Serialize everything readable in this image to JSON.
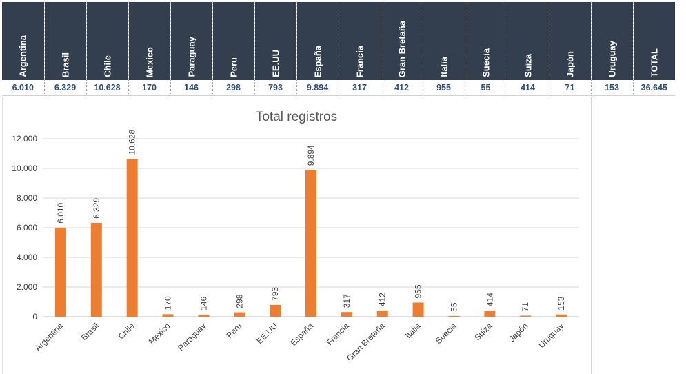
{
  "table": {
    "headers": [
      "Argentina",
      "Brasil",
      "Chile",
      "Mexico",
      "Paraguay",
      "Peru",
      "EE.UU",
      "España",
      "Francia",
      "Gran Bretaña",
      "Italia",
      "Suecia",
      "Suiza",
      "Japón",
      "Uruguay",
      "TOTAL"
    ],
    "values": [
      "6.010",
      "6.329",
      "10.628",
      "170",
      "146",
      "298",
      "793",
      "9.894",
      "317",
      "412",
      "955",
      "55",
      "414",
      "71",
      "153",
      "36.645"
    ]
  },
  "chart_data": {
    "type": "bar",
    "title": "Total registros",
    "xlabel": "",
    "ylabel": "",
    "categories": [
      "Argentina",
      "Brasil",
      "Chile",
      "Mexico",
      "Paraguay",
      "Peru",
      "EE.UU",
      "España",
      "Francia",
      "Gran Bretaña",
      "Italia",
      "Suecia",
      "Suiza",
      "Japón",
      "Uruguay"
    ],
    "values": [
      6010,
      6329,
      10628,
      170,
      146,
      298,
      793,
      9894,
      317,
      412,
      955,
      55,
      414,
      71,
      153
    ],
    "data_labels": [
      "6.010",
      "6.329",
      "10.628",
      "170",
      "146",
      "298",
      "793",
      "9.894",
      "317",
      "412",
      "955",
      "55",
      "414",
      "71",
      "153"
    ],
    "ylim": [
      0,
      12000
    ],
    "yticks": [
      0,
      2000,
      4000,
      6000,
      8000,
      10000,
      12000
    ],
    "ytick_labels": [
      "0",
      "2.000",
      "4.000",
      "6.000",
      "8.000",
      "10.000",
      "12.000"
    ],
    "grid": true,
    "legend": "none",
    "bar_color": "#ed7d31"
  },
  "colors": {
    "header_bg": "#333f4f",
    "value_text": "#2f4e7a",
    "bar": "#ed7d31",
    "grid": "#d9d9d9"
  }
}
